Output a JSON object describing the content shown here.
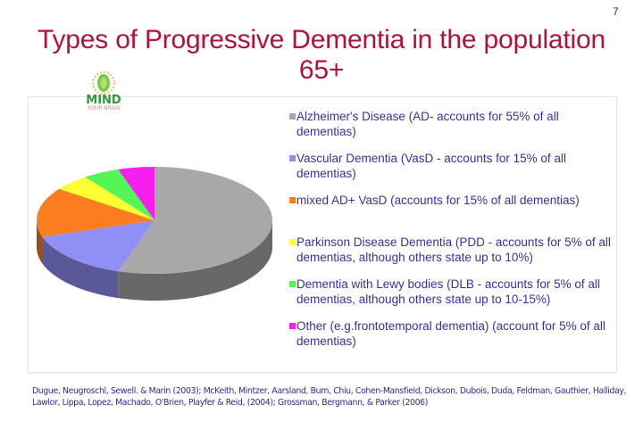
{
  "slide": {
    "page_number": "7",
    "title_line1": "Types of Progressive Dementia in the population",
    "title_line2": "65+",
    "logo": {
      "name": "mind-your-brain-logo",
      "text": "MIND",
      "subtext": "YOUR BRAIN"
    },
    "citation": "Dugue, Neugroschl, Sewell. & Marin (2003); McKeith, Mintzer, Aarsland, Burn, Chiu, Cohen-Mansfield, Dickson, Dubois, Duda, Feldman, Gauthier, Halliday, Lawlor, Lippa, Lopez, Machado, O'Brien, Playfer & Reid, (2004); Grossman, Bergmann, & Parker (2006)"
  },
  "legend": [
    {
      "label": "Alzheimer's Disease (AD- accounts for 55% of all dementias)",
      "color": "#a8a8a8"
    },
    {
      "label": "Vascular Dementia (VasD - accounts for 15% of all dementias)",
      "color": "#8f8ff5"
    },
    {
      "label": "mixed AD+ VasD (accounts for 15% of all dementias)",
      "color": "#fb7d1e"
    },
    {
      "label": "Parkinson Disease Dementia (PDD - accounts for 5% of all dementias, although others state up to 10%)",
      "color": "#ffff33"
    },
    {
      "label": "Dementia with Lewy bodies (DLB - accounts for 5% of all dementias, although others state up to 10-15%)",
      "color": "#55f555"
    },
    {
      "label": "Other (e.g.frontotemporal dementia) (account for 5% of all dementias)",
      "color": "#f520f0"
    }
  ],
  "chart_data": {
    "type": "pie",
    "style": "3d",
    "title": "Types of Progressive Dementia in the population 65+",
    "categories": [
      "Alzheimer's Disease (AD)",
      "Vascular Dementia (VasD)",
      "mixed AD+ VasD",
      "Parkinson Disease Dementia (PDD)",
      "Dementia with Lewy bodies (DLB)",
      "Other (e.g. frontotemporal dementia)"
    ],
    "values": [
      55,
      15,
      15,
      5,
      5,
      5
    ],
    "unit": "%",
    "colors": [
      "#a8a8a8",
      "#8f8ff5",
      "#fb7d1e",
      "#ffff33",
      "#55f555",
      "#f520f0"
    ],
    "start_angle": "12 o'clock, clockwise",
    "legend_position": "right",
    "data_labels": false
  }
}
